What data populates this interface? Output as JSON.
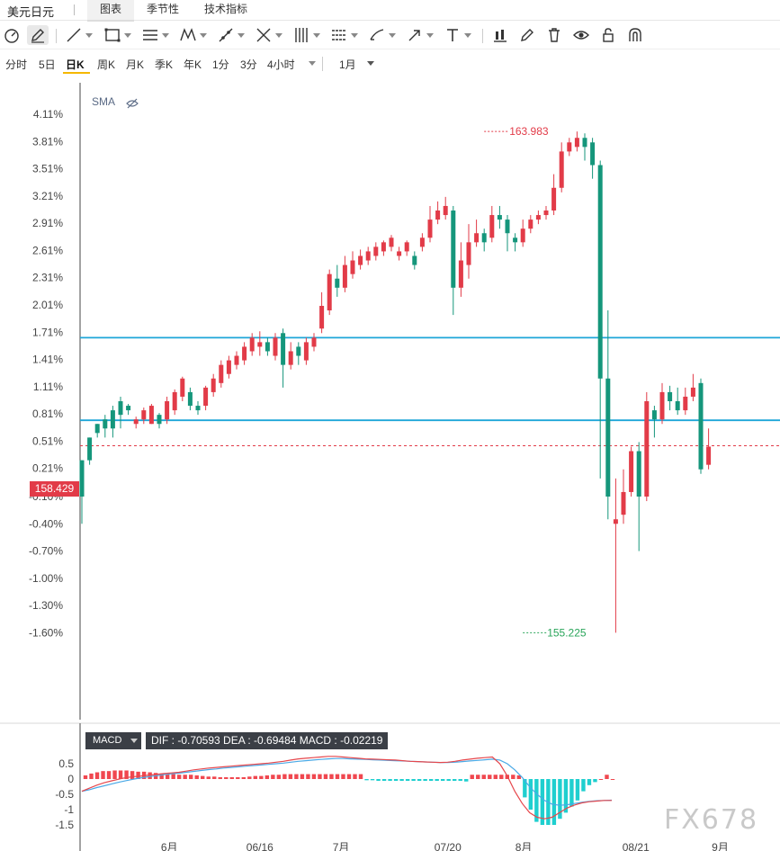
{
  "header": {
    "pair_title": "美元日元",
    "tabs": [
      {
        "label": "图表",
        "active": true
      },
      {
        "label": "季节性",
        "active": false
      },
      {
        "label": "技术指标",
        "active": false
      }
    ]
  },
  "toolbar": {
    "tools": [
      "gauge-icon",
      "pencil-icon",
      "trend-line-icon",
      "rectangle-icon",
      "parallel-lines-icon",
      "pattern-icon",
      "fibonacci-icon",
      "cross-lines-icon",
      "vertical-lines-icon",
      "horizontal-lines-icon",
      "brush-icon",
      "arrow-icon",
      "text-icon",
      "indicator-icon",
      "edit-icon",
      "trash-icon",
      "eye-icon",
      "unlock-icon",
      "magnet-icon"
    ]
  },
  "periods": {
    "items": [
      "分时",
      "5日",
      "日K",
      "周K",
      "月K",
      "季K",
      "年K",
      "1分",
      "3分",
      "4小时"
    ],
    "active": "日K",
    "range_label": "1月"
  },
  "indicator": {
    "sma_label": "SMA",
    "macd_select": "MACD",
    "macd_info": "DIF : -0.70593  DEA : -0.69484  MACD : -0.02219"
  },
  "price_tag": "158.429",
  "colors": {
    "up": "#e23b48",
    "down": "#15967b",
    "hline": "#1ea6d8",
    "macd_pos": "#f0474f",
    "macd_neg": "#1fcfcf",
    "dif": "#e6474c",
    "dea": "#4aa9e6"
  },
  "watermark": "FX678",
  "chart_data": [
    {
      "type": "candlestick",
      "y_axis_ticks": [
        "4.11%",
        "3.81%",
        "3.51%",
        "3.21%",
        "2.91%",
        "2.61%",
        "2.31%",
        "2.01%",
        "1.71%",
        "1.41%",
        "1.11%",
        "0.81%",
        "0.51%",
        "0.21%",
        "-0.10%",
        "-0.40%",
        "-0.70%",
        "-1.00%",
        "-1.30%",
        "-1.60%"
      ],
      "y_axis_values": [
        4.11,
        3.81,
        3.51,
        3.21,
        2.91,
        2.61,
        2.31,
        2.01,
        1.71,
        1.41,
        1.11,
        0.81,
        0.51,
        0.21,
        -0.1,
        -0.4,
        -0.7,
        -1.0,
        -1.3,
        -1.6
      ],
      "ylim": [
        -1.8,
        4.4
      ],
      "x_axis_labels": [
        "6月",
        "06/16",
        "7月",
        "07/20",
        "8月",
        "08/21",
        "9月"
      ],
      "x_axis_label_index": [
        11.3,
        23,
        33.5,
        47.3,
        57.1,
        71.6,
        82.5
      ],
      "max_label": "163.983",
      "max_index": 52,
      "max_value": 3.92,
      "min_label": "155.225",
      "min_index": 57,
      "min_value": -1.6,
      "last_price": 158.429,
      "horizontal_lines": [
        1.65,
        0.74
      ],
      "last_price_line": 0.46,
      "candles": [
        [
          0.3,
          -0.1,
          0.3,
          -0.4
        ],
        [
          0.55,
          0.3,
          0.55,
          0.25
        ],
        [
          0.7,
          0.6,
          0.7,
          0.55
        ],
        [
          0.75,
          0.65,
          0.8,
          0.55
        ],
        [
          0.85,
          0.65,
          0.9,
          0.55
        ],
        [
          0.95,
          0.8,
          1.0,
          0.65
        ],
        [
          0.9,
          0.85,
          0.92,
          0.8
        ],
        [
          0.7,
          0.75,
          0.78,
          0.65
        ],
        [
          0.75,
          0.85,
          0.88,
          0.7
        ],
        [
          0.7,
          0.9,
          0.92,
          0.7
        ],
        [
          0.8,
          0.7,
          0.82,
          0.65
        ],
        [
          0.75,
          0.95,
          1.0,
          0.7
        ],
        [
          0.85,
          1.05,
          1.08,
          0.8
        ],
        [
          1.0,
          1.2,
          1.22,
          0.95
        ],
        [
          1.05,
          0.9,
          1.1,
          0.85
        ],
        [
          0.9,
          0.85,
          0.95,
          0.8
        ],
        [
          0.9,
          1.1,
          1.12,
          0.85
        ],
        [
          1.05,
          1.2,
          1.25,
          1.0
        ],
        [
          1.15,
          1.35,
          1.4,
          1.1
        ],
        [
          1.25,
          1.4,
          1.45,
          1.2
        ],
        [
          1.35,
          1.45,
          1.5,
          1.3
        ],
        [
          1.4,
          1.55,
          1.6,
          1.35
        ],
        [
          1.5,
          1.65,
          1.7,
          1.45
        ],
        [
          1.55,
          1.6,
          1.72,
          1.45
        ],
        [
          1.6,
          1.5,
          1.65,
          1.45
        ],
        [
          1.45,
          1.65,
          1.7,
          1.4
        ],
        [
          1.7,
          1.35,
          1.75,
          1.1
        ],
        [
          1.35,
          1.5,
          1.6,
          1.3
        ],
        [
          1.55,
          1.45,
          1.6,
          1.35
        ],
        [
          1.4,
          1.6,
          1.65,
          1.35
        ],
        [
          1.55,
          1.65,
          1.7,
          1.5
        ],
        [
          1.75,
          2.0,
          2.15,
          1.7
        ],
        [
          1.95,
          2.35,
          2.4,
          1.9
        ],
        [
          2.3,
          2.2,
          2.45,
          2.1
        ],
        [
          2.2,
          2.45,
          2.55,
          2.15
        ],
        [
          2.35,
          2.5,
          2.6,
          2.3
        ],
        [
          2.45,
          2.55,
          2.62,
          2.4
        ],
        [
          2.5,
          2.6,
          2.65,
          2.45
        ],
        [
          2.55,
          2.65,
          2.7,
          2.5
        ],
        [
          2.6,
          2.7,
          2.72,
          2.55
        ],
        [
          2.65,
          2.75,
          2.78,
          2.6
        ],
        [
          2.55,
          2.6,
          2.65,
          2.5
        ],
        [
          2.6,
          2.7,
          2.72,
          2.55
        ],
        [
          2.55,
          2.45,
          2.6,
          2.4
        ],
        [
          2.65,
          2.75,
          2.8,
          2.6
        ],
        [
          2.75,
          2.95,
          3.1,
          2.7
        ],
        [
          2.95,
          3.05,
          3.15,
          2.9
        ],
        [
          3.0,
          3.1,
          3.2,
          2.95
        ],
        [
          3.05,
          2.2,
          3.1,
          1.9
        ],
        [
          2.2,
          2.5,
          2.7,
          2.1
        ],
        [
          2.45,
          2.7,
          2.9,
          2.3
        ],
        [
          2.7,
          2.8,
          2.95,
          2.65
        ],
        [
          2.8,
          2.7,
          2.85,
          2.6
        ],
        [
          2.75,
          3.0,
          3.1,
          2.7
        ],
        [
          3.0,
          2.95,
          3.1,
          2.85
        ],
        [
          2.95,
          2.8,
          3.0,
          2.6
        ],
        [
          2.75,
          2.7,
          2.8,
          2.6
        ],
        [
          2.7,
          2.85,
          2.95,
          2.65
        ],
        [
          2.85,
          2.95,
          3.0,
          2.8
        ],
        [
          2.95,
          3.0,
          3.05,
          2.9
        ],
        [
          3.0,
          3.05,
          3.1,
          2.95
        ],
        [
          3.05,
          3.3,
          3.45,
          3.0
        ],
        [
          3.3,
          3.7,
          3.8,
          3.25
        ],
        [
          3.7,
          3.8,
          3.85,
          3.65
        ],
        [
          3.75,
          3.85,
          3.92,
          3.7
        ],
        [
          3.85,
          3.75,
          3.9,
          3.6
        ],
        [
          3.8,
          3.55,
          3.85,
          3.4
        ],
        [
          3.55,
          1.2,
          3.6,
          0.1
        ],
        [
          1.2,
          -0.1,
          1.95,
          -0.35
        ],
        [
          -0.4,
          -0.35,
          0.1,
          -1.6
        ],
        [
          -0.3,
          -0.05,
          0.2,
          -0.4
        ],
        [
          -0.05,
          0.4,
          0.45,
          -0.1
        ],
        [
          0.4,
          -0.1,
          0.5,
          -0.7
        ],
        [
          -0.1,
          0.95,
          1.05,
          -0.15
        ],
        [
          0.85,
          0.75,
          0.9,
          0.55
        ],
        [
          0.75,
          1.05,
          1.15,
          0.7
        ],
        [
          1.05,
          0.95,
          1.12,
          0.85
        ],
        [
          0.95,
          0.85,
          1.1,
          0.8
        ],
        [
          0.85,
          1.0,
          1.1,
          0.8
        ],
        [
          1.0,
          1.1,
          1.25,
          0.95
        ],
        [
          1.15,
          0.2,
          1.2,
          0.15
        ],
        [
          0.25,
          0.45,
          0.65,
          0.2
        ]
      ]
    },
    {
      "type": "bar",
      "title": "MACD",
      "y_axis_ticks": [
        "0.5",
        "0",
        "-0.5",
        "-1",
        "-1.5"
      ],
      "y_axis_values": [
        0.5,
        0,
        -0.5,
        -1,
        -1.5
      ],
      "ylim": [
        -1.7,
        0.75
      ],
      "series": [
        {
          "name": "MACD",
          "values": [
            0.12,
            0.18,
            0.22,
            0.26,
            0.26,
            0.28,
            0.28,
            0.28,
            0.26,
            0.24,
            0.24,
            0.22,
            0.2,
            0.18,
            0.16,
            0.16,
            0.14,
            0.14,
            0.14,
            0.12,
            0.1,
            0.08,
            0.08,
            0.06,
            0.06,
            0.06,
            0.06,
            0.06,
            0.08,
            0.1,
            0.1,
            0.12,
            0.14,
            0.14,
            0.16,
            0.16,
            0.16,
            0.16,
            0.16,
            0.16,
            0.16,
            0.16,
            0.16,
            0.16,
            0.16,
            0.16,
            0.16,
            0.16,
            -0.04,
            -0.04,
            -0.06,
            -0.06,
            -0.06,
            -0.06,
            -0.06,
            -0.06,
            -0.06,
            -0.06,
            -0.06,
            -0.06,
            -0.06,
            -0.06,
            -0.06,
            -0.06,
            -0.06,
            -0.08,
            0.14,
            0.14,
            0.14,
            0.14,
            0.14,
            0.14,
            0.14,
            0.14,
            0.12,
            -0.6,
            -1.0,
            -1.4,
            -1.5,
            -1.5,
            -1.5,
            -1.3,
            -1.1,
            -0.9,
            -0.7,
            -0.4,
            -0.2,
            -0.1,
            0.0,
            0.14,
            0.0
          ]
        },
        {
          "name": "DIF",
          "values": [
            -0.4,
            -0.3,
            -0.2,
            -0.12,
            -0.06,
            0.0,
            0.05,
            0.08,
            0.1,
            0.13,
            0.15,
            0.18,
            0.2,
            0.22,
            0.26,
            0.3,
            0.33,
            0.36,
            0.38,
            0.4,
            0.42,
            0.44,
            0.46,
            0.48,
            0.5,
            0.52,
            0.55,
            0.58,
            0.62,
            0.66,
            0.68,
            0.7,
            0.72,
            0.74,
            0.74,
            0.72,
            0.7,
            0.68,
            0.66,
            0.65,
            0.64,
            0.63,
            0.62,
            0.6,
            0.58,
            0.57,
            0.56,
            0.55,
            0.54,
            0.55,
            0.58,
            0.62,
            0.65,
            0.68,
            0.7,
            0.72,
            0.5,
            0.1,
            -0.4,
            -0.8,
            -1.1,
            -1.25,
            -1.3,
            -1.25,
            -1.1,
            -0.95,
            -0.85,
            -0.78,
            -0.74,
            -0.72,
            -0.7,
            -0.7
          ]
        },
        {
          "name": "DEA",
          "values": [
            -0.4,
            -0.35,
            -0.28,
            -0.22,
            -0.16,
            -0.1,
            -0.05,
            0.0,
            0.04,
            0.08,
            0.11,
            0.14,
            0.17,
            0.19,
            0.22,
            0.25,
            0.28,
            0.31,
            0.33,
            0.36,
            0.38,
            0.4,
            0.42,
            0.44,
            0.46,
            0.48,
            0.5,
            0.52,
            0.55,
            0.58,
            0.6,
            0.62,
            0.64,
            0.66,
            0.67,
            0.67,
            0.66,
            0.65,
            0.64,
            0.63,
            0.62,
            0.61,
            0.6,
            0.59,
            0.58,
            0.57,
            0.56,
            0.55,
            0.54,
            0.54,
            0.55,
            0.57,
            0.59,
            0.61,
            0.63,
            0.65,
            0.62,
            0.5,
            0.3,
            0.05,
            -0.25,
            -0.5,
            -0.7,
            -0.82,
            -0.86,
            -0.84,
            -0.8,
            -0.76,
            -0.73,
            -0.71,
            -0.7,
            -0.69
          ]
        }
      ]
    }
  ]
}
